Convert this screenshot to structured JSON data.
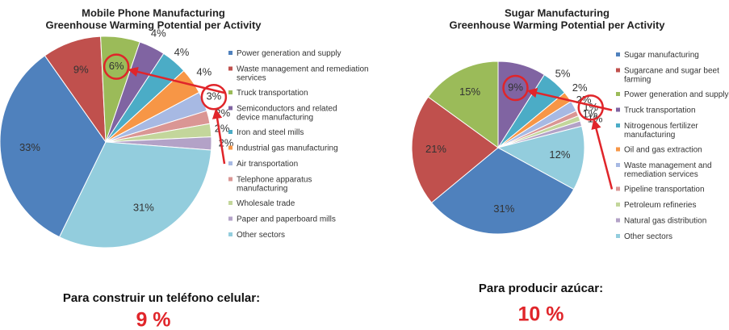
{
  "chart_data": [
    {
      "type": "pie",
      "title": [
        "Mobile Phone  Manufacturing",
        "Greenhouse Warming Potential per Activity"
      ],
      "categories": [
        "Power generation and supply",
        "Waste management and remediation services",
        "Truck transportation",
        "Semiconductors and related device manufacturing",
        "Iron and steel mills",
        "Industrial gas manufacturing",
        "Air transportation",
        "Telephone apparatus manufacturing",
        "Wholesale trade",
        "Paper and paperboard mills",
        "Other sectors"
      ],
      "values": [
        33,
        9,
        6,
        4,
        4,
        4,
        3,
        2,
        2,
        2,
        31
      ],
      "value_labels": [
        "33%",
        "9%",
        "6%",
        "4%",
        "4%",
        "4%",
        "3%",
        "2%",
        "2%",
        "2%",
        "31%"
      ],
      "colors": [
        "#4f81bd",
        "#c0504d",
        "#9bbb59",
        "#8064a2",
        "#4bacc6",
        "#f79646",
        "#a7b9e3",
        "#da9694",
        "#c3d69b",
        "#b3a2c7",
        "#93cddd"
      ]
    },
    {
      "type": "pie",
      "title": [
        "Sugar Manufacturing",
        "Greenhouse Warming Potential per Activity"
      ],
      "categories": [
        "Sugar manufacturing",
        "Sugarcane and sugar beet farming",
        "Power generation and supply",
        "Truck transportation",
        "Nitrogenous fertilizer manufacturing",
        "Oil and gas extraction",
        "Waste management and remediation services",
        "Pipeline transportation",
        "Petroleum refineries",
        "Natural gas distribution",
        "Other sectors"
      ],
      "values": [
        31,
        21,
        15,
        9,
        5,
        2,
        2,
        1,
        1,
        1,
        12
      ],
      "value_labels": [
        "31%",
        "21%",
        "15%",
        "9%",
        "5%",
        "2%",
        "2%",
        "1%",
        "1%",
        "1%",
        "12%"
      ],
      "colors": [
        "#4f81bd",
        "#c0504d",
        "#9bbb59",
        "#8064a2",
        "#4bacc6",
        "#f79646",
        "#a7b9e3",
        "#da9694",
        "#c3d69b",
        "#b3a2c7",
        "#93cddd"
      ]
    }
  ],
  "captions": [
    {
      "text": "Para construir un teléfono celular:",
      "value": "9 %"
    },
    {
      "text": "Para producir azúcar:",
      "value": "10 %"
    }
  ]
}
